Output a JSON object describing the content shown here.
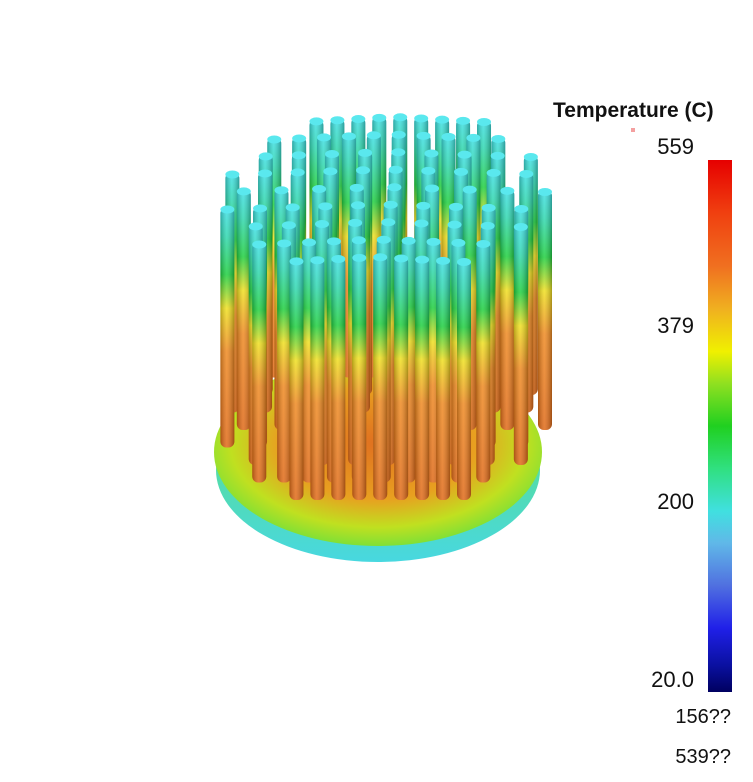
{
  "legend": {
    "title": "Temperature (C)",
    "max_label": "559",
    "mid_high_label": "379",
    "mid_low_label": "200",
    "min_label": "20.0",
    "footer_line1": "156??",
    "footer_line2": "539??",
    "colors": {
      "hot": "#e60000",
      "warm": "#f07020",
      "yellow": "#f0f000",
      "green": "#20d020",
      "cyan": "#40e0e0",
      "blue": "#2020e8",
      "cold": "#000060"
    }
  },
  "model": {
    "pin_colors": {
      "base": "#e06a18",
      "mid": "#f0e020",
      "upper": "#20d040",
      "tip": "#40e0e8"
    },
    "plate_colors": {
      "rim": "#48d8e0",
      "top": "#80e040",
      "center": "#e07020"
    }
  }
}
